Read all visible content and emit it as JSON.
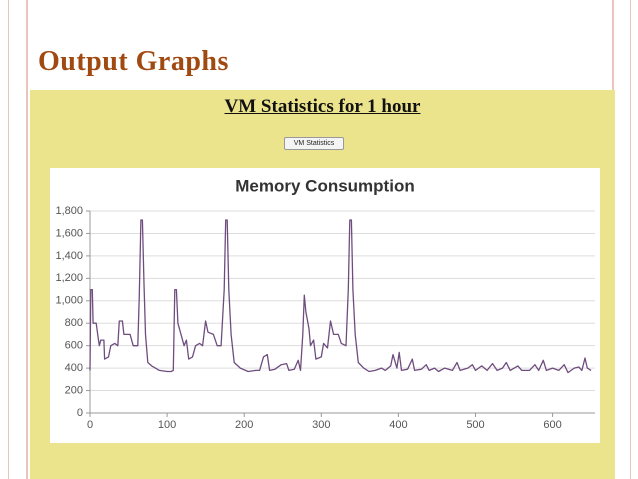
{
  "slide": {
    "title": "Output Graphs",
    "panel_title": "VM Statistics for 1 hour",
    "button": "VM Statistics"
  },
  "chart_data": {
    "type": "line",
    "title": "Memory Consumption",
    "x": [
      0,
      1,
      3,
      4,
      8,
      10,
      12,
      14,
      18,
      19,
      24,
      27,
      32,
      36,
      38,
      42,
      44,
      52,
      56,
      62,
      64,
      66,
      68,
      70,
      72,
      75,
      80,
      90,
      100,
      105,
      108,
      110,
      112,
      114,
      118,
      122,
      125,
      128,
      133,
      137,
      142,
      146,
      150,
      153,
      160,
      165,
      170,
      174,
      176,
      178,
      180,
      183,
      187,
      195,
      205,
      215,
      220,
      225,
      230,
      233,
      240,
      248,
      255,
      258,
      265,
      270,
      273,
      276,
      278,
      280,
      284,
      286,
      290,
      293,
      300,
      303,
      308,
      312,
      316,
      322,
      326,
      332,
      335,
      337,
      339,
      341,
      344,
      348,
      355,
      362,
      370,
      378,
      383,
      390,
      393,
      398,
      401,
      404,
      412,
      418,
      421,
      430,
      436,
      440,
      447,
      452,
      460,
      470,
      476,
      480,
      490,
      496,
      500,
      508,
      515,
      522,
      528,
      535,
      540,
      545,
      555,
      560,
      570,
      577,
      582,
      588,
      592,
      600,
      608,
      615,
      620,
      628,
      634,
      638,
      642,
      645,
      650
    ],
    "values": [
      380,
      1100,
      1100,
      800,
      800,
      700,
      600,
      650,
      650,
      480,
      500,
      600,
      620,
      600,
      820,
      820,
      700,
      700,
      600,
      600,
      1050,
      1720,
      1720,
      1150,
      700,
      450,
      420,
      380,
      370,
      370,
      380,
      1100,
      1100,
      800,
      700,
      600,
      650,
      480,
      500,
      600,
      620,
      600,
      820,
      720,
      700,
      600,
      600,
      1100,
      1720,
      1720,
      1100,
      700,
      450,
      400,
      370,
      380,
      380,
      500,
      520,
      380,
      390,
      430,
      440,
      380,
      390,
      470,
      380,
      700,
      1050,
      900,
      750,
      600,
      650,
      480,
      500,
      620,
      580,
      820,
      700,
      700,
      620,
      600,
      1100,
      1720,
      1720,
      1100,
      700,
      450,
      400,
      370,
      380,
      400,
      380,
      420,
      520,
      400,
      540,
      380,
      390,
      480,
      380,
      390,
      430,
      380,
      400,
      370,
      400,
      380,
      450,
      380,
      400,
      430,
      380,
      420,
      380,
      440,
      380,
      400,
      450,
      380,
      420,
      380,
      380,
      430,
      380,
      470,
      380,
      400,
      380,
      430,
      360,
      400,
      410,
      380,
      490,
      400,
      380
    ],
    "color": "#6e4d7e",
    "xlim": [
      0,
      655
    ],
    "xticks": [
      0,
      100,
      200,
      300,
      400,
      500,
      600
    ],
    "ylim": [
      0,
      1800
    ],
    "yticks": [
      0,
      200,
      400,
      600,
      800,
      {
        "value": 1000,
        "label": "1,000"
      },
      {
        "value": 1200,
        "label": "1,200"
      },
      {
        "value": 1400,
        "label": "1,400"
      },
      {
        "value": 1600,
        "label": "1,600"
      },
      {
        "value": 1800,
        "label": "1,800"
      }
    ],
    "grid": true
  }
}
